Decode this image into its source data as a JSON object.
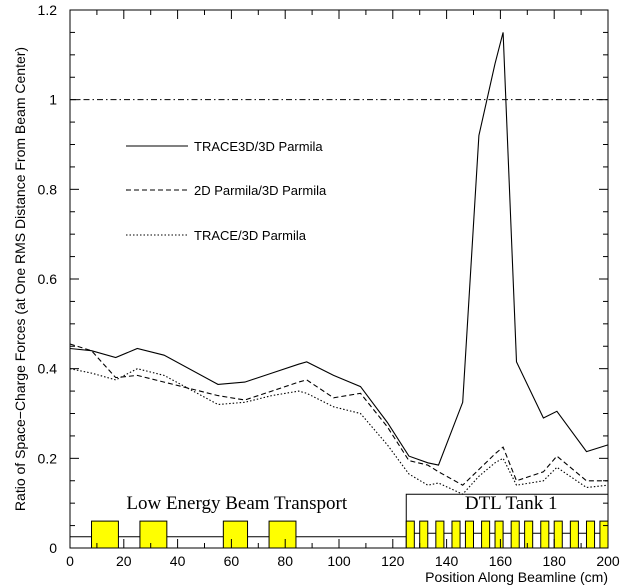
{
  "chart_data": {
    "type": "line",
    "xlabel": "Position Along Beamline (cm)",
    "ylabel": "Ratio of Space−Charge Forces (at One RMS Distance From Beam Center)",
    "xlim": [
      0,
      200
    ],
    "ylim": [
      0,
      1.2
    ],
    "x_ticks": [
      "0",
      "20",
      "40",
      "60",
      "80",
      "100",
      "120",
      "140",
      "160",
      "180",
      "200"
    ],
    "y_ticks": [
      "0",
      "0.2",
      "0.4",
      "0.6",
      "0.8",
      "1",
      "1.2"
    ],
    "grid": false,
    "legend_placement": "upper-left",
    "reference_line": {
      "y": 1.0,
      "style": "dash-dot"
    },
    "series": [
      {
        "name": "TRACE3D/3D Parmila",
        "style": "solid",
        "x": [
          0,
          8,
          17,
          25,
          35,
          55,
          65,
          75,
          85,
          88,
          98,
          108,
          118,
          126,
          133,
          137,
          146,
          152,
          158,
          161,
          166,
          176,
          181,
          192,
          200
        ],
        "y": [
          0.445,
          0.44,
          0.425,
          0.445,
          0.43,
          0.365,
          0.37,
          0.39,
          0.41,
          0.415,
          0.385,
          0.36,
          0.28,
          0.205,
          0.19,
          0.185,
          0.325,
          0.92,
          1.08,
          1.15,
          0.415,
          0.29,
          0.305,
          0.215,
          0.23
        ]
      },
      {
        "name": "2D Parmila/3D Parmila",
        "style": "dashed",
        "x": [
          0,
          8,
          17,
          25,
          35,
          55,
          65,
          75,
          85,
          88,
          98,
          108,
          118,
          126,
          133,
          137,
          146,
          152,
          158,
          161,
          166,
          176,
          181,
          192,
          200
        ],
        "y": [
          0.455,
          0.44,
          0.38,
          0.385,
          0.37,
          0.34,
          0.33,
          0.35,
          0.37,
          0.375,
          0.335,
          0.345,
          0.27,
          0.195,
          0.185,
          0.17,
          0.14,
          0.175,
          0.21,
          0.225,
          0.15,
          0.17,
          0.205,
          0.15,
          0.15
        ]
      },
      {
        "name": "TRACE/3D Parmila",
        "style": "dotted",
        "x": [
          0,
          8,
          17,
          25,
          35,
          55,
          65,
          75,
          85,
          88,
          98,
          108,
          118,
          126,
          133,
          137,
          146,
          152,
          158,
          161,
          166,
          176,
          181,
          192,
          200
        ],
        "y": [
          0.4,
          0.39,
          0.375,
          0.4,
          0.385,
          0.32,
          0.325,
          0.34,
          0.35,
          0.345,
          0.315,
          0.3,
          0.23,
          0.165,
          0.14,
          0.145,
          0.12,
          0.16,
          0.19,
          0.2,
          0.14,
          0.15,
          0.18,
          0.135,
          0.14
        ]
      }
    ],
    "regions": [
      {
        "label": "Low Energy Beam Transport",
        "x_start": 0,
        "x_end": 125
      },
      {
        "label": "DTL Tank 1",
        "x_start": 125,
        "x_end": 200
      }
    ],
    "lebt_magnets": [
      [
        8,
        18
      ],
      [
        26,
        36
      ],
      [
        57,
        66
      ],
      [
        74,
        84
      ]
    ],
    "dtl_magnets": [
      [
        125,
        128
      ],
      [
        130,
        133
      ],
      [
        136,
        139
      ],
      [
        142,
        145
      ],
      [
        147,
        150
      ],
      [
        153,
        156
      ],
      [
        158,
        161
      ],
      [
        164,
        167
      ],
      [
        169,
        172
      ],
      [
        175,
        178
      ],
      [
        180,
        183
      ],
      [
        186,
        189
      ],
      [
        192,
        195
      ],
      [
        197,
        200
      ]
    ],
    "colors": {
      "magnet_fill": "#ffff00",
      "line": "#000000",
      "background": "#ffffff"
    }
  }
}
